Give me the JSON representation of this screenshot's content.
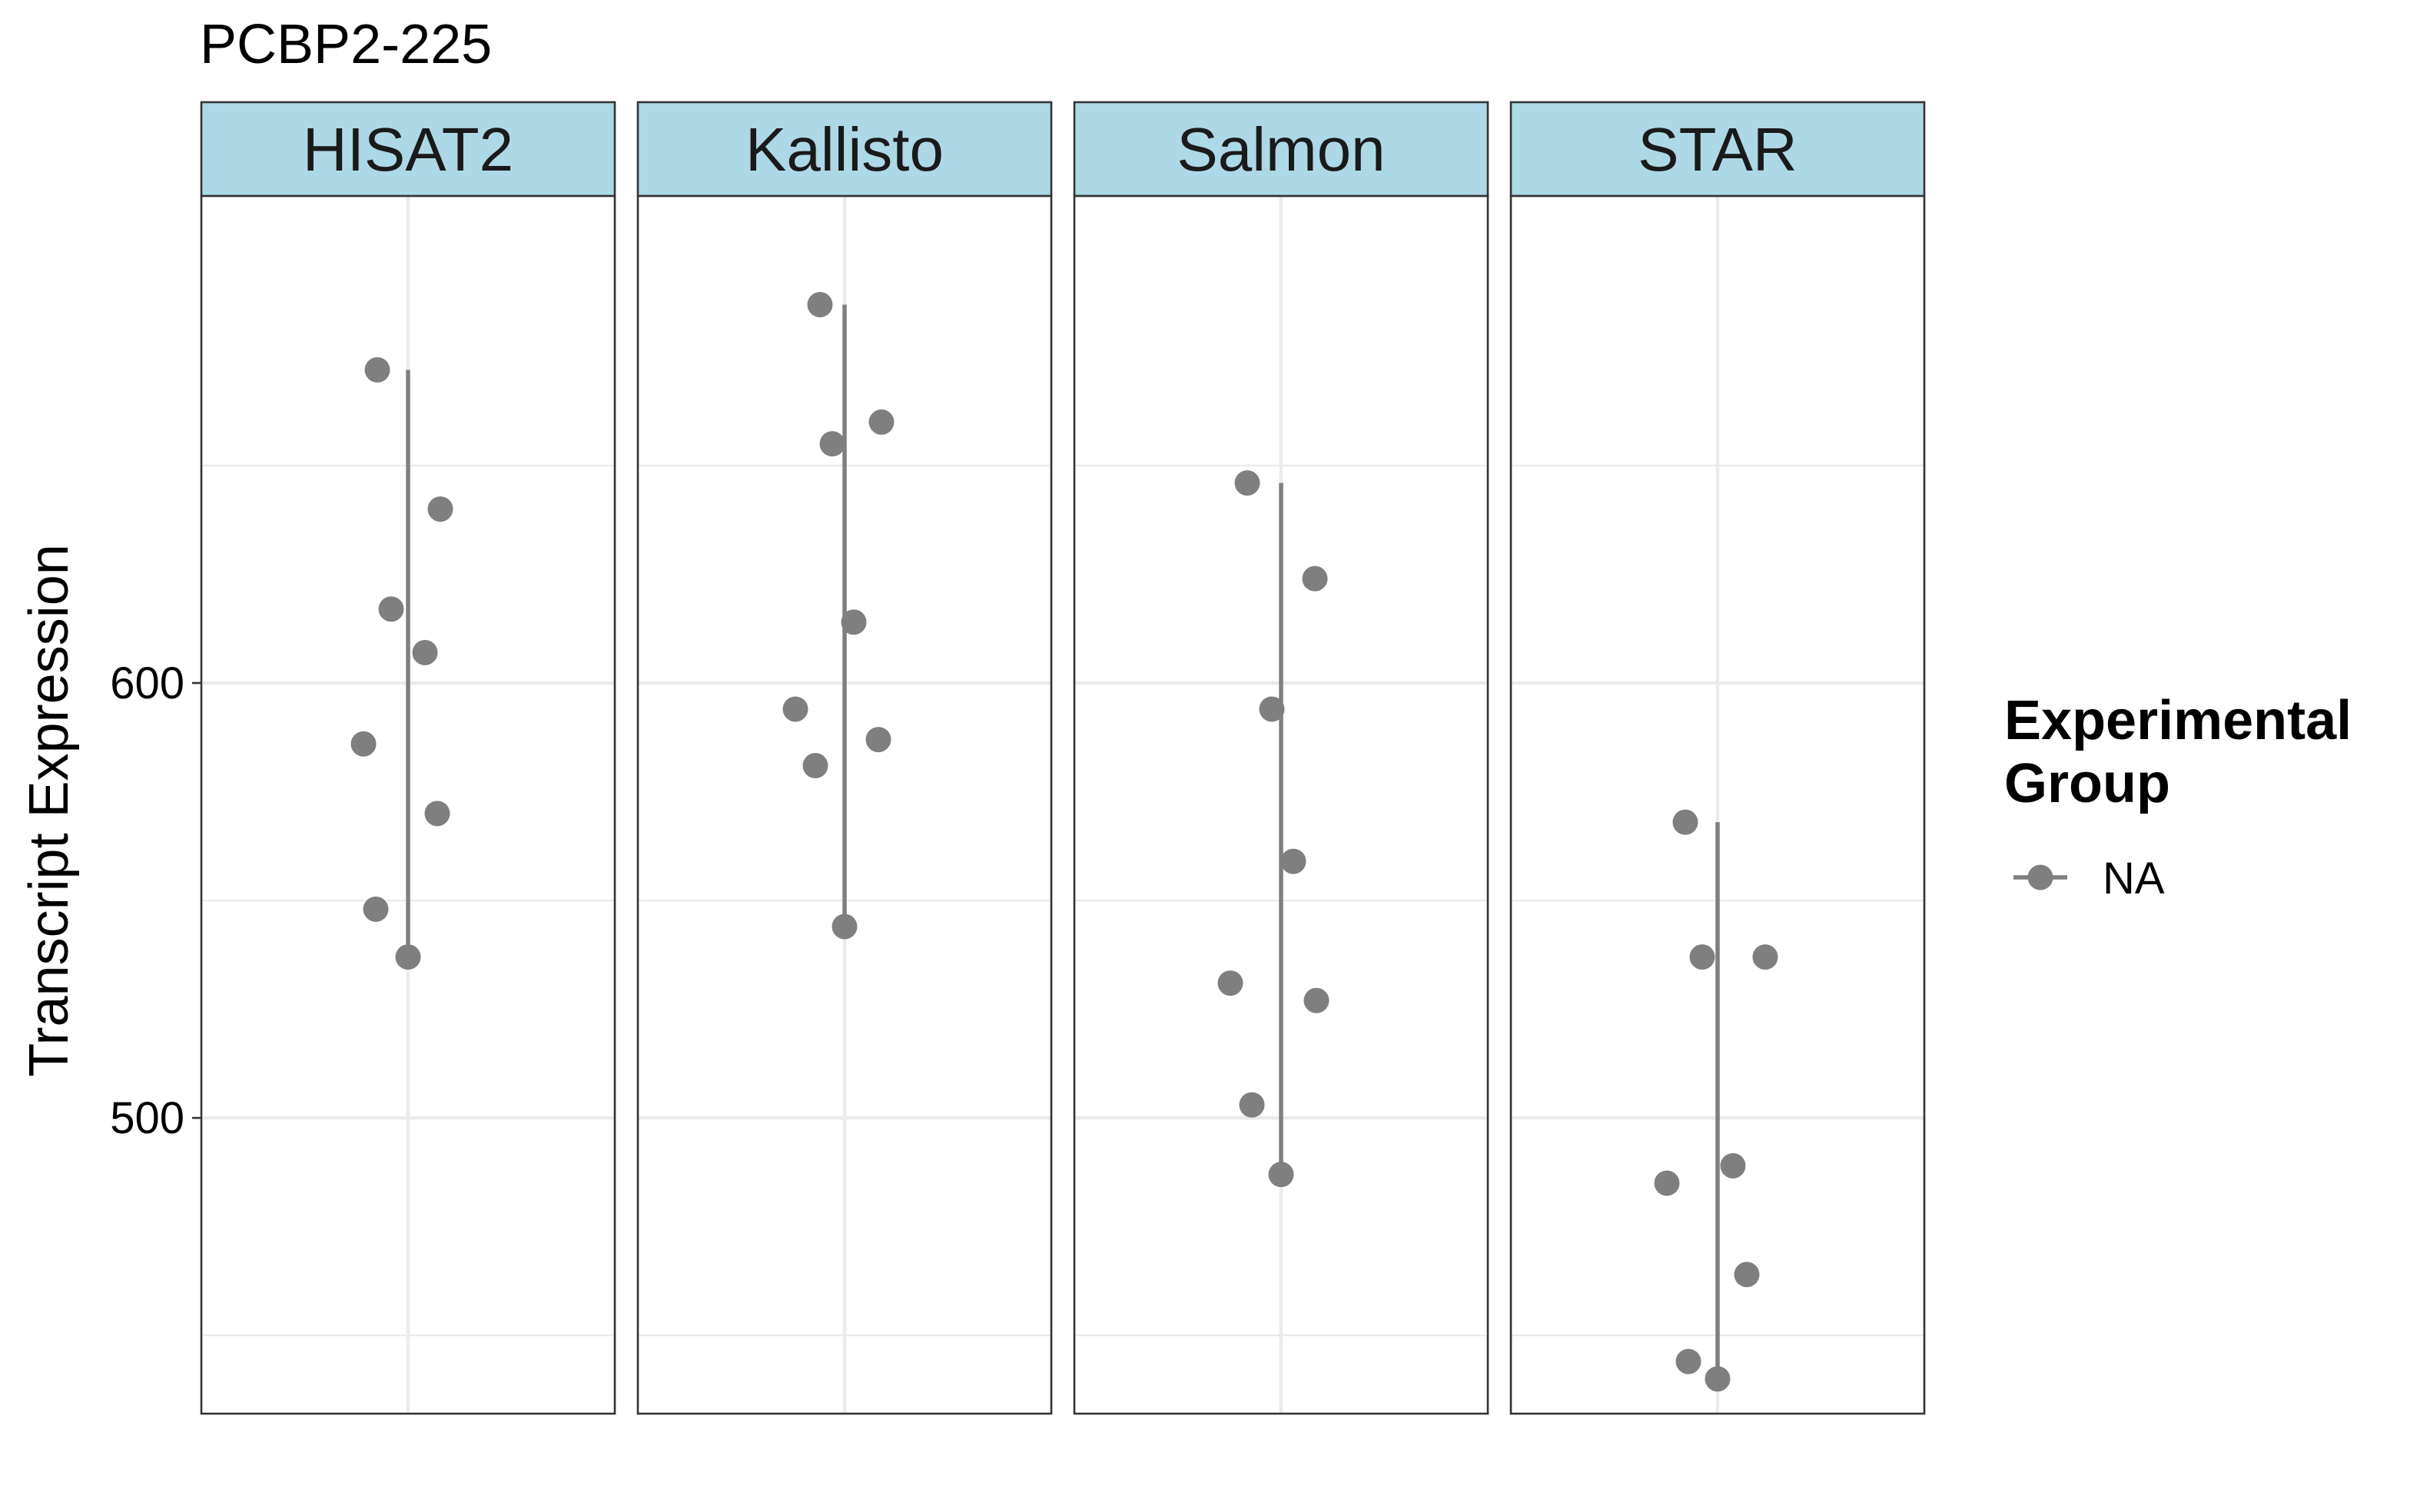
{
  "chart_data": {
    "type": "scatter",
    "title": "PCBP2-225",
    "ylabel": "Transcript Expression",
    "xlabel": "",
    "ylim": [
      432,
      712
    ],
    "y_ticks": [
      500,
      600
    ],
    "y_minor_ticks": [
      450,
      550,
      650
    ],
    "grid": true,
    "point_color": "#7f7f7f",
    "strip_color": "#add8e6",
    "panels": [
      {
        "name": "HISAT2",
        "values": [
          672,
          640,
          617,
          607,
          586,
          570,
          548,
          537
        ]
      },
      {
        "name": "Kallisto",
        "values": [
          687,
          660,
          655,
          614,
          594,
          587,
          581,
          544
        ]
      },
      {
        "name": "Salmon",
        "values": [
          646,
          624,
          594,
          559,
          531,
          527,
          503,
          487
        ]
      },
      {
        "name": "STAR",
        "values": [
          568,
          537,
          537,
          489,
          485,
          464,
          444,
          440
        ]
      }
    ],
    "legend": {
      "title": "Experimental Group",
      "title_lines": [
        "Experimental",
        "Group"
      ],
      "entries": [
        {
          "label": "NA",
          "color": "#7f7f7f"
        }
      ],
      "position": "right"
    }
  }
}
